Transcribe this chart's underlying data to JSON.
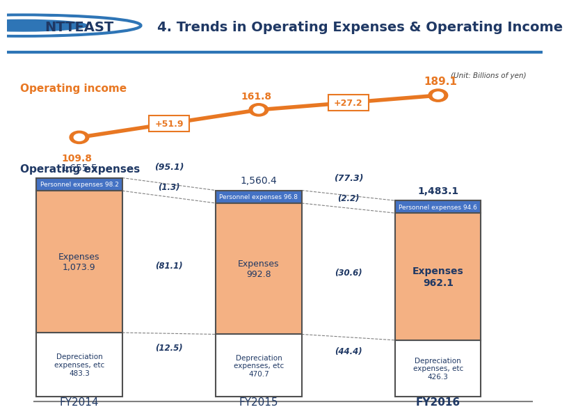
{
  "title": "4. Trends in Operating Expenses & Operating Income",
  "unit_text": "(Unit: Billions of yen)",
  "header_bg": "#4472C4",
  "header_line_color": "#2E75B6",
  "orange": "#E87722",
  "dark_orange": "#E87722",
  "blue_bar": "#4472C4",
  "light_orange_bar": "#F4B183",
  "white_bar": "#FFFFFF",
  "dark_border": "#404040",
  "gray_border": "#808080",
  "years": [
    "FY2014",
    "FY2015",
    "FY2016"
  ],
  "operating_income": [
    109.8,
    161.8,
    189.1
  ],
  "income_changes": [
    "+51.9",
    "+27.2"
  ],
  "personnel": [
    98.2,
    96.8,
    94.6
  ],
  "expenses": [
    1073.9,
    992.8,
    962.1
  ],
  "depreciation": [
    483.3,
    470.7,
    426.3
  ],
  "total": [
    1655.5,
    1560.4,
    1483.1
  ],
  "changes_total": [
    "(95.1)",
    "(77.3)"
  ],
  "changes_personnel": [
    "(1.3)",
    "(2.2)"
  ],
  "changes_expenses": [
    "(81.1)",
    "(30.6)"
  ],
  "changes_depreciation": [
    "(12.5)",
    "(44.4)"
  ],
  "title_color": "#1F3864",
  "orange_color": "#E87722",
  "ntteast_color": "#1F3864",
  "operating_income_label": "Operating income",
  "operating_expenses_label": "Operating expenses"
}
